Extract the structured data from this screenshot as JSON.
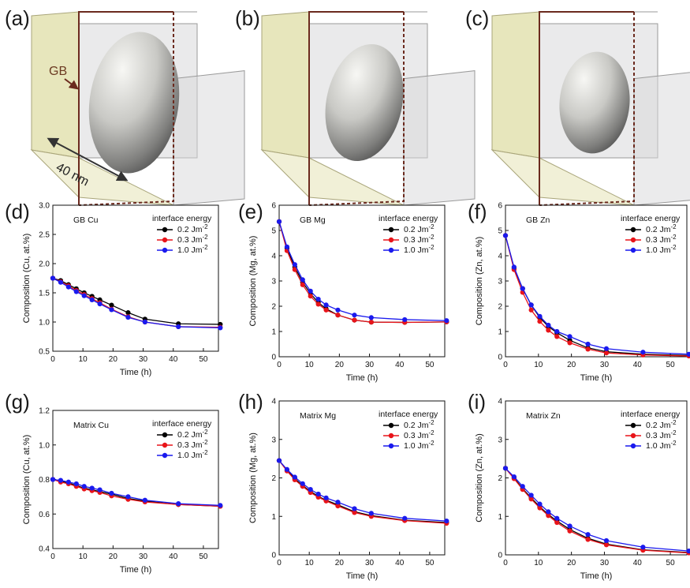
{
  "figure": {
    "illustrations": [
      {
        "label": "(a)",
        "gb_label": "GB",
        "scale_label": "40 nm",
        "precipitate": {
          "rx": 0.47,
          "ry": 0.6,
          "tilt": 8
        }
      },
      {
        "label": "(b)",
        "gb_label": "",
        "scale_label": "",
        "precipitate": {
          "rx": 0.4,
          "ry": 0.5,
          "tilt": 12
        }
      },
      {
        "label": "(c)",
        "gb_label": "",
        "scale_label": "",
        "precipitate": {
          "rx": 0.37,
          "ry": 0.43,
          "tilt": 5
        }
      }
    ],
    "colors": {
      "series_0.2": "#000000",
      "series_0.3": "#e8141a",
      "series_1.0": "#1a1aee",
      "gb_plane": "#e3e2b0",
      "gb_edge": "#6b2a1e",
      "box_face": "#d8d8da",
      "box_edge": "#9a9a9a"
    },
    "legend_title": "interface energy",
    "legend_unit": "Jm",
    "legend_unit_exp": "-2"
  },
  "chart_data": [
    {
      "type": "line",
      "label": "(d)",
      "inset": "GB Cu",
      "xlabel": "Time (h)",
      "ylabel": "Composition (Cu, at.%)",
      "xlim": [
        0,
        55
      ],
      "ylim": [
        0.5,
        3.0
      ],
      "xticks": [
        "0",
        "10",
        "20",
        "30",
        "40",
        "50"
      ],
      "yticks": [
        "0.5",
        "1.0",
        "1.5",
        "2.0",
        "2.5",
        "3.0"
      ],
      "x": [
        0,
        2.6,
        5.2,
        7.8,
        10.4,
        13,
        15.6,
        19.5,
        25,
        30.6,
        41.7,
        55.6
      ],
      "series": [
        {
          "name": "0.2",
          "values": [
            1.75,
            1.71,
            1.64,
            1.57,
            1.5,
            1.44,
            1.38,
            1.29,
            1.16,
            1.05,
            0.97,
            0.96
          ]
        },
        {
          "name": "0.3",
          "values": [
            1.75,
            1.69,
            1.62,
            1.54,
            1.47,
            1.4,
            1.33,
            1.22,
            1.09,
            1.0,
            0.92,
            0.91
          ]
        },
        {
          "name": "1.0",
          "values": [
            1.75,
            1.68,
            1.6,
            1.52,
            1.45,
            1.38,
            1.31,
            1.21,
            1.08,
            1.0,
            0.92,
            0.9
          ]
        }
      ]
    },
    {
      "type": "line",
      "label": "(e)",
      "inset": "GB Mg",
      "xlabel": "Time (h)",
      "ylabel": "Composition (Mg, at.%)",
      "xlim": [
        0,
        55
      ],
      "ylim": [
        0,
        6
      ],
      "xticks": [
        "0",
        "10",
        "20",
        "30",
        "40",
        "50"
      ],
      "yticks": [
        "0",
        "1",
        "2",
        "3",
        "4",
        "5",
        "6"
      ],
      "x": [
        0,
        2.6,
        5.2,
        7.8,
        10.4,
        13,
        15.6,
        19.5,
        25,
        30.6,
        41.7,
        55.6
      ],
      "series": [
        {
          "name": "0.2",
          "values": [
            5.35,
            4.3,
            3.55,
            2.95,
            2.5,
            2.15,
            1.9,
            1.65,
            1.45,
            1.37,
            1.36,
            1.38
          ]
        },
        {
          "name": "0.3",
          "values": [
            5.35,
            4.2,
            3.45,
            2.85,
            2.4,
            2.08,
            1.85,
            1.65,
            1.45,
            1.37,
            1.36,
            1.38
          ]
        },
        {
          "name": "1.0",
          "values": [
            5.35,
            4.35,
            3.65,
            3.05,
            2.6,
            2.28,
            2.05,
            1.85,
            1.65,
            1.55,
            1.47,
            1.43
          ]
        }
      ]
    },
    {
      "type": "line",
      "label": "(f)",
      "inset": "GB Zn",
      "xlabel": "Time (h)",
      "ylabel": "Composition (Zn, at.%)",
      "xlim": [
        0,
        55
      ],
      "ylim": [
        0,
        6
      ],
      "xticks": [
        "0",
        "10",
        "20",
        "30",
        "40",
        "50"
      ],
      "yticks": [
        "0",
        "1",
        "2",
        "3",
        "4",
        "5",
        "6"
      ],
      "x": [
        0,
        2.6,
        5.2,
        7.8,
        10.4,
        13,
        15.6,
        19.5,
        25,
        30.6,
        41.7,
        55.6
      ],
      "series": [
        {
          "name": "0.2",
          "values": [
            4.8,
            3.5,
            2.7,
            2.05,
            1.55,
            1.2,
            0.95,
            0.65,
            0.35,
            0.2,
            0.1,
            0.05
          ]
        },
        {
          "name": "0.3",
          "values": [
            4.8,
            3.45,
            2.55,
            1.85,
            1.4,
            1.05,
            0.8,
            0.55,
            0.3,
            0.15,
            0.07,
            0.03
          ]
        },
        {
          "name": "1.0",
          "values": [
            4.8,
            3.55,
            2.7,
            2.05,
            1.6,
            1.25,
            1.0,
            0.8,
            0.5,
            0.32,
            0.18,
            0.1
          ]
        }
      ]
    },
    {
      "type": "line",
      "label": "(g)",
      "inset": "Matrix Cu",
      "xlabel": "Time (h)",
      "ylabel": "Composition (Cu, at.%)",
      "xlim": [
        0,
        55
      ],
      "ylim": [
        0.4,
        1.2
      ],
      "xticks": [
        "0",
        "10",
        "20",
        "30",
        "40",
        "50"
      ],
      "yticks": [
        "0.4",
        "0.6",
        "0.8",
        "1.0",
        "1.2"
      ],
      "x": [
        0,
        2.6,
        5.2,
        7.8,
        10.4,
        13,
        15.6,
        19.5,
        25,
        30.6,
        41.7,
        55.6
      ],
      "series": [
        {
          "name": "0.2",
          "values": [
            0.8,
            0.79,
            0.78,
            0.765,
            0.75,
            0.74,
            0.73,
            0.715,
            0.69,
            0.675,
            0.655,
            0.645
          ]
        },
        {
          "name": "0.3",
          "values": [
            0.8,
            0.785,
            0.775,
            0.76,
            0.745,
            0.735,
            0.725,
            0.705,
            0.685,
            0.67,
            0.655,
            0.645
          ]
        },
        {
          "name": "1.0",
          "values": [
            0.8,
            0.795,
            0.785,
            0.775,
            0.76,
            0.75,
            0.74,
            0.72,
            0.7,
            0.68,
            0.66,
            0.65
          ]
        }
      ]
    },
    {
      "type": "line",
      "label": "(h)",
      "inset": "Matrix Mg",
      "xlabel": "Time (h)",
      "ylabel": "Composition (Mg, at.%)",
      "xlim": [
        0,
        55
      ],
      "ylim": [
        0,
        4
      ],
      "xticks": [
        "0",
        "10",
        "20",
        "30",
        "40",
        "50"
      ],
      "yticks": [
        "0",
        "1",
        "2",
        "3",
        "4"
      ],
      "x": [
        0,
        2.6,
        5.2,
        7.8,
        10.4,
        13,
        15.6,
        19.5,
        25,
        30.6,
        41.7,
        55.6
      ],
      "series": [
        {
          "name": "0.2",
          "values": [
            2.45,
            2.2,
            1.98,
            1.8,
            1.65,
            1.52,
            1.42,
            1.3,
            1.12,
            1.02,
            0.9,
            0.84
          ]
        },
        {
          "name": "0.3",
          "values": [
            2.45,
            2.18,
            1.95,
            1.78,
            1.62,
            1.5,
            1.4,
            1.27,
            1.1,
            1.0,
            0.89,
            0.82
          ]
        },
        {
          "name": "1.0",
          "values": [
            2.45,
            2.22,
            2.02,
            1.85,
            1.7,
            1.58,
            1.48,
            1.37,
            1.2,
            1.08,
            0.95,
            0.88
          ]
        }
      ]
    },
    {
      "type": "line",
      "label": "(i)",
      "inset": "Matrix Zn",
      "xlabel": "Time (h)",
      "ylabel": "Composition (Zn, at.%)",
      "xlim": [
        0,
        55
      ],
      "ylim": [
        0,
        4
      ],
      "xticks": [
        "0",
        "10",
        "20",
        "30",
        "40",
        "50"
      ],
      "yticks": [
        "0",
        "1",
        "2",
        "3",
        "4"
      ],
      "x": [
        0,
        2.6,
        5.2,
        7.8,
        10.4,
        13,
        15.6,
        19.5,
        25,
        30.6,
        41.7,
        55.6
      ],
      "series": [
        {
          "name": "0.2",
          "values": [
            2.25,
            2.0,
            1.72,
            1.48,
            1.25,
            1.05,
            0.88,
            0.66,
            0.43,
            0.28,
            0.13,
            0.06
          ]
        },
        {
          "name": "0.3",
          "values": [
            2.25,
            1.98,
            1.7,
            1.45,
            1.22,
            1.02,
            0.84,
            0.62,
            0.4,
            0.26,
            0.12,
            0.05
          ]
        },
        {
          "name": "1.0",
          "values": [
            2.25,
            2.03,
            1.78,
            1.55,
            1.32,
            1.12,
            0.95,
            0.75,
            0.53,
            0.37,
            0.2,
            0.1
          ]
        }
      ]
    }
  ]
}
